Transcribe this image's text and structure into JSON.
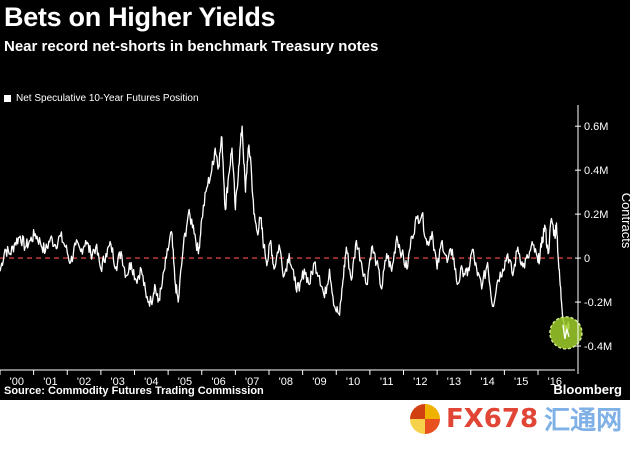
{
  "header": {
    "title": "Bets on Higher Yields",
    "subtitle": "Near record net-shorts in benchmark Treasury notes"
  },
  "legend": {
    "label": "Net Speculative 10-Year Futures Position",
    "color": "#ffffff"
  },
  "footer": {
    "source": "Source: Commodity Futures Trading Commission",
    "brand": "Bloomberg"
  },
  "watermark": {
    "fx": "FX678",
    "cn": "汇通网"
  },
  "colors": {
    "background": "#000000",
    "line": "#ffffff",
    "zero_line": "#d0403a",
    "highlight": "#9fcf2a"
  },
  "chart_data": {
    "type": "line",
    "xlabel": "",
    "ylabel": "Contracts",
    "x_tick_labels": [
      "'00",
      "'01",
      "'02",
      "'03",
      "'04",
      "'05",
      "'06",
      "'07",
      "'08",
      "'09",
      "'10",
      "'11",
      "'12",
      "'13",
      "'14",
      "'15",
      "'16"
    ],
    "x_range": [
      2000.0,
      2017.1
    ],
    "y_tick_labels": [
      "-0.4M",
      "-0.2M",
      "0",
      "0.2M",
      "0.4M",
      "0.6M"
    ],
    "y_ticks": [
      -0.4,
      -0.2,
      0,
      0.2,
      0.4,
      0.6
    ],
    "ylim": [
      -0.5,
      0.66
    ],
    "grid": false,
    "legend_position": "top-left",
    "reference_line": {
      "y": 0,
      "style": "dashed"
    },
    "highlight": {
      "x": 2016.83,
      "y": -0.34
    },
    "series": [
      {
        "name": "Net Speculative 10-Year Futures Position",
        "x": [
          2000.0,
          2000.15,
          2000.3,
          2000.45,
          2000.6,
          2000.75,
          2000.9,
          2001.05,
          2001.2,
          2001.35,
          2001.5,
          2001.65,
          2001.8,
          2001.95,
          2002.1,
          2002.25,
          2002.4,
          2002.55,
          2002.7,
          2002.85,
          2003.0,
          2003.15,
          2003.3,
          2003.45,
          2003.6,
          2003.75,
          2003.9,
          2004.05,
          2004.2,
          2004.35,
          2004.5,
          2004.6,
          2004.7,
          2004.8,
          2004.95,
          2005.1,
          2005.2,
          2005.3,
          2005.45,
          2005.6,
          2005.75,
          2005.9,
          2006.0,
          2006.15,
          2006.3,
          2006.4,
          2006.5,
          2006.6,
          2006.7,
          2006.8,
          2006.9,
          2007.0,
          2007.1,
          2007.2,
          2007.3,
          2007.38,
          2007.45,
          2007.55,
          2007.65,
          2007.75,
          2007.85,
          2007.95,
          2008.05,
          2008.15,
          2008.3,
          2008.45,
          2008.6,
          2008.75,
          2008.9,
          2009.05,
          2009.2,
          2009.35,
          2009.5,
          2009.65,
          2009.8,
          2009.95,
          2010.1,
          2010.2,
          2010.3,
          2010.45,
          2010.6,
          2010.75,
          2010.9,
          2011.05,
          2011.2,
          2011.35,
          2011.5,
          2011.65,
          2011.8,
          2011.95,
          2012.1,
          2012.25,
          2012.4,
          2012.55,
          2012.7,
          2012.85,
          2013.0,
          2013.15,
          2013.3,
          2013.45,
          2013.6,
          2013.75,
          2013.9,
          2014.05,
          2014.2,
          2014.35,
          2014.5,
          2014.65,
          2014.8,
          2014.95,
          2015.1,
          2015.25,
          2015.4,
          2015.55,
          2015.7,
          2015.85,
          2016.0,
          2016.1,
          2016.2,
          2016.3,
          2016.4,
          2016.5,
          2016.55,
          2016.62,
          2016.7,
          2016.78,
          2016.85,
          2016.92
        ],
        "values": [
          -0.06,
          0.04,
          0.02,
          0.07,
          0.1,
          0.05,
          0.08,
          0.11,
          0.07,
          0.03,
          0.09,
          0.06,
          0.1,
          0.05,
          -0.02,
          0.06,
          0.03,
          0.08,
          0.02,
          0.05,
          -0.05,
          0.02,
          0.06,
          -0.04,
          0.03,
          -0.08,
          -0.02,
          -0.1,
          -0.05,
          -0.18,
          -0.2,
          -0.12,
          -0.2,
          -0.14,
          0.0,
          0.12,
          -0.1,
          -0.2,
          0.05,
          0.2,
          0.15,
          0.02,
          0.18,
          0.32,
          0.4,
          0.5,
          0.42,
          0.55,
          0.22,
          0.38,
          0.5,
          0.22,
          0.42,
          0.6,
          0.3,
          0.5,
          0.46,
          0.2,
          0.12,
          0.18,
          0.05,
          -0.02,
          0.08,
          -0.05,
          0.06,
          -0.08,
          0.02,
          -0.1,
          -0.15,
          -0.05,
          -0.12,
          -0.02,
          -0.08,
          -0.18,
          -0.05,
          -0.22,
          -0.26,
          -0.1,
          0.05,
          -0.1,
          0.08,
          -0.02,
          -0.12,
          0.05,
          -0.02,
          -0.14,
          0.02,
          -0.06,
          0.1,
          0.02,
          -0.05,
          0.1,
          0.18,
          0.2,
          0.06,
          0.12,
          -0.05,
          0.08,
          -0.02,
          0.04,
          -0.12,
          -0.05,
          -0.08,
          0.04,
          -0.08,
          -0.12,
          -0.02,
          -0.22,
          -0.1,
          -0.05,
          0.02,
          -0.08,
          0.05,
          -0.04,
          0.0,
          0.06,
          -0.02,
          0.05,
          0.15,
          0.02,
          0.18,
          0.1,
          0.16,
          -0.05,
          -0.2,
          -0.3,
          -0.34,
          -0.3
        ]
      }
    ]
  }
}
